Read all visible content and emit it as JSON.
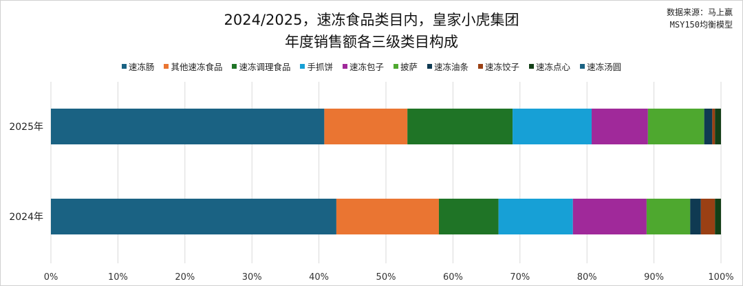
{
  "chart_data": {
    "type": "bar",
    "orientation": "horizontal",
    "stacked": "percent",
    "title": "2024/2025，速冻食品类目内，皇家小虎集团",
    "subtitle": "年度销售额各三级类目构成",
    "source_line1": "数据来源：马上赢",
    "source_line2": "MSY150均衡模型",
    "categories": [
      "2025年",
      "2024年"
    ],
    "xlim": [
      0,
      100
    ],
    "xticks": [
      "0%",
      "10%",
      "20%",
      "30%",
      "40%",
      "50%",
      "60%",
      "70%",
      "80%",
      "90%",
      "100%"
    ],
    "grid": true,
    "legend_position": "top",
    "series": [
      {
        "name": "速冻肠",
        "color": "#1a6283",
        "values": [
          40.8,
          42.6
        ]
      },
      {
        "name": "其他速冻食品",
        "color": "#ea7532",
        "values": [
          12.4,
          15.3
        ]
      },
      {
        "name": "速冻调理食品",
        "color": "#1f7426",
        "values": [
          15.7,
          8.9
        ]
      },
      {
        "name": "手抓饼",
        "color": "#17a0d6",
        "values": [
          11.8,
          11.1
        ]
      },
      {
        "name": "速冻包子",
        "color": "#a0299a",
        "values": [
          8.4,
          11.0
        ]
      },
      {
        "name": "披萨",
        "color": "#4ea82f",
        "values": [
          8.4,
          6.5
        ]
      },
      {
        "name": "速冻油条",
        "color": "#0f3a52",
        "values": [
          1.2,
          1.6
        ]
      },
      {
        "name": "速冻饺子",
        "color": "#9a4014",
        "values": [
          0.4,
          2.1
        ]
      },
      {
        "name": "速冻点心",
        "color": "#133f17",
        "values": [
          0.9,
          0.9
        ]
      },
      {
        "name": "速冻汤圆",
        "color": "#1a6283",
        "values": [
          0.0,
          0.0
        ]
      }
    ]
  }
}
